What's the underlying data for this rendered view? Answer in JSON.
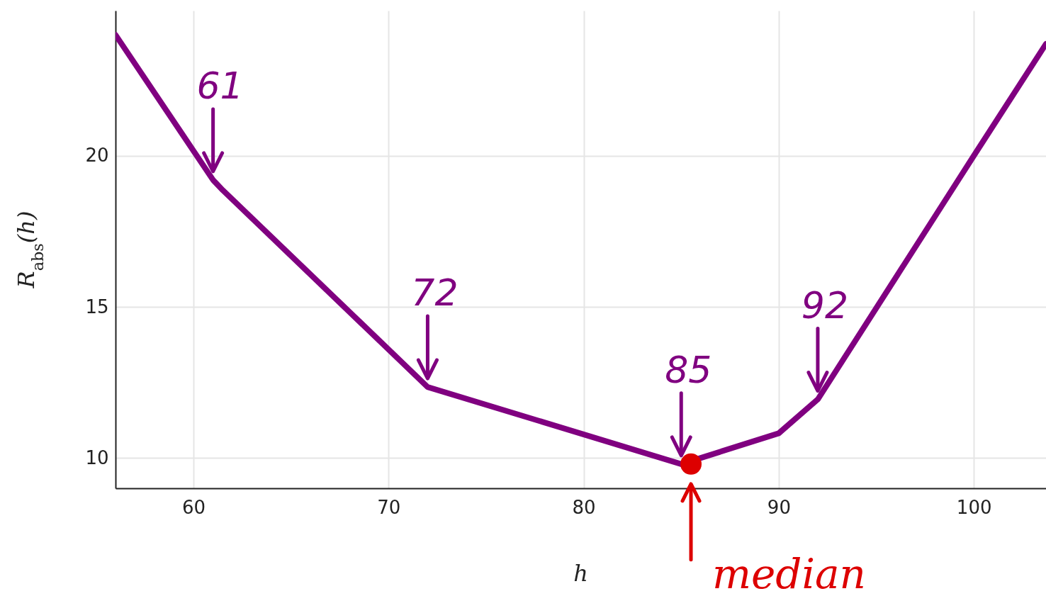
{
  "chart_data": {
    "type": "line",
    "xlabel": "h",
    "ylabel": "R$_{abs}$(h)",
    "xlim": [
      56,
      103.7
    ],
    "ylim": [
      9,
      24.8
    ],
    "xticks": [
      60,
      70,
      80,
      90,
      100
    ],
    "yticks": [
      10,
      15,
      20
    ],
    "grid": true,
    "line_style": "solid",
    "series": [
      {
        "color": "#800080",
        "x": [
          56,
          61,
          61.5,
          72,
          85,
          90,
          92,
          100,
          103.7
        ],
        "values": [
          24.0,
          19.2,
          18.86,
          12.35,
          9.8,
          10.82,
          11.94,
          20.0,
          23.7
        ]
      },
      {
        "type": "scatter",
        "color": "#dd0000",
        "x": [
          85.5
        ],
        "values": [
          9.8
        ]
      }
    ],
    "annotations": [
      {
        "text": "61",
        "x": 61,
        "y": 19.2
      },
      {
        "text": "72",
        "x": 72,
        "y": 12.35
      },
      {
        "text": "85",
        "x": 85,
        "y": 9.8
      },
      {
        "text": "92",
        "x": 92,
        "y": 11.94
      },
      {
        "text": "median",
        "x": 85.5,
        "y": 9.8
      }
    ]
  }
}
